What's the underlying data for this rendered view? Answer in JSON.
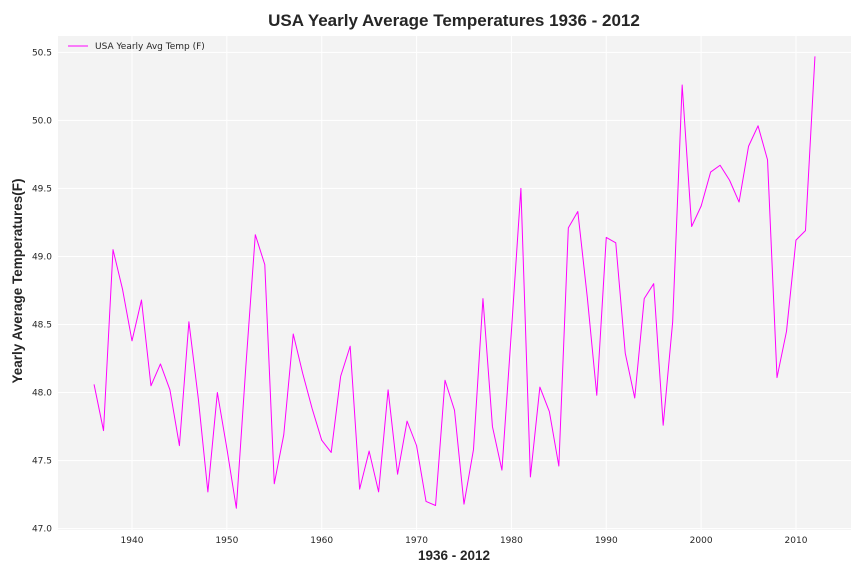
{
  "colors": {
    "line": "#ff00ff",
    "plot_background": "#f3f3f3",
    "grid": "#ffffff",
    "text": "#262626"
  },
  "chart_data": {
    "type": "line",
    "title": "USA Yearly Average Temperatures 1936 - 2012",
    "xlabel": "1936 - 2012",
    "ylabel": "Yearly Average Temperatures(F)",
    "xlim": [
      1932.2,
      2015.8
    ],
    "ylim": [
      46.99,
      50.62
    ],
    "xticks": [
      1940,
      1950,
      1960,
      1970,
      1980,
      1990,
      2000,
      2010
    ],
    "xtick_labels": [
      "1940",
      "1950",
      "1960",
      "1970",
      "1980",
      "1990",
      "2000",
      "2010"
    ],
    "yticks": [
      47.0,
      47.5,
      48.0,
      48.5,
      49.0,
      49.5,
      50.0,
      50.5
    ],
    "ytick_labels": [
      "47.0",
      "47.5",
      "48.0",
      "48.5",
      "49.0",
      "49.5",
      "50.0",
      "50.5"
    ],
    "grid": true,
    "legend_position": "top-left",
    "series": [
      {
        "name": "USA Yearly Avg Temp (F)",
        "color": "#ff00ff",
        "x": [
          1936,
          1937,
          1938,
          1939,
          1940,
          1941,
          1942,
          1943,
          1944,
          1945,
          1946,
          1947,
          1948,
          1949,
          1950,
          1951,
          1952,
          1953,
          1954,
          1955,
          1956,
          1957,
          1958,
          1959,
          1960,
          1961,
          1962,
          1963,
          1964,
          1965,
          1966,
          1967,
          1968,
          1969,
          1970,
          1971,
          1972,
          1973,
          1974,
          1975,
          1976,
          1977,
          1978,
          1979,
          1980,
          1981,
          1982,
          1983,
          1984,
          1985,
          1986,
          1987,
          1988,
          1989,
          1990,
          1991,
          1992,
          1993,
          1994,
          1995,
          1996,
          1997,
          1998,
          1999,
          2000,
          2001,
          2002,
          2003,
          2004,
          2005,
          2006,
          2007,
          2008,
          2009,
          2010,
          2011,
          2012
        ],
        "y": [
          48.06,
          47.72,
          49.05,
          48.76,
          48.38,
          48.68,
          48.05,
          48.21,
          48.02,
          47.61,
          48.52,
          47.95,
          47.27,
          48.0,
          47.59,
          47.15,
          48.19,
          49.16,
          48.94,
          47.33,
          47.69,
          48.43,
          48.14,
          47.88,
          47.65,
          47.56,
          48.12,
          48.34,
          47.29,
          47.57,
          47.27,
          48.02,
          47.4,
          47.79,
          47.61,
          47.2,
          47.17,
          48.09,
          47.87,
          47.18,
          47.58,
          48.69,
          47.75,
          47.43,
          48.45,
          49.5,
          47.38,
          48.04,
          47.86,
          47.46,
          49.21,
          49.33,
          48.7,
          47.98,
          49.14,
          49.1,
          48.29,
          47.96,
          48.69,
          48.8,
          47.76,
          48.52,
          50.26,
          49.22,
          49.37,
          49.62,
          49.67,
          49.56,
          49.4,
          49.81,
          49.96,
          49.71,
          48.11,
          48.45,
          49.12,
          49.19,
          50.47
        ]
      }
    ]
  }
}
